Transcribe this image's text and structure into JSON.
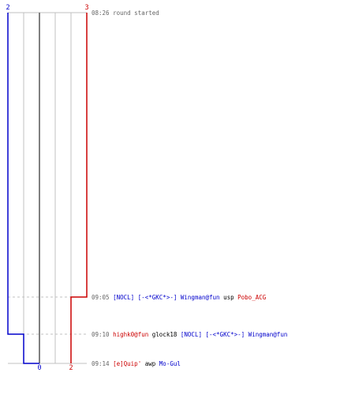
{
  "chart_data": {
    "type": "line",
    "x_edge_labels": {
      "blue_top": "2",
      "red_top": "3",
      "blue_bottom": "0",
      "red_bottom": "2"
    },
    "series": [
      {
        "color": "#0000cc",
        "values": [
          2,
          2,
          1,
          0
        ]
      },
      {
        "color": "#cc0000",
        "values": [
          3,
          2,
          2,
          2
        ]
      }
    ],
    "events": [
      {
        "time": "08:26",
        "parts": [
          {
            "text": "round started",
            "style": "plain"
          }
        ]
      },
      {
        "time": "09:05",
        "parts": [
          {
            "text": "[NOCL] [-<*GKC*>-] Wingman@fun",
            "style": "blue"
          },
          {
            "text": " usp ",
            "style": "plain"
          },
          {
            "text": "Pobo_ACG",
            "style": "red"
          }
        ]
      },
      {
        "time": "09:10",
        "parts": [
          {
            "text": "highk0@fun",
            "style": "red"
          },
          {
            "text": " glock18 ",
            "style": "plain"
          },
          {
            "text": "[NOCL] [-<*GKC*>-] Wingman@fun",
            "style": "blue"
          }
        ]
      },
      {
        "time": "09:14",
        "parts": [
          {
            "text": "[e]Quip'",
            "style": "red"
          },
          {
            "text": " awp ",
            "style": "plain"
          },
          {
            "text": "Mo-Gul",
            "style": "blue"
          }
        ]
      }
    ],
    "grid": true
  },
  "colors": {
    "blue": "#0000cc",
    "red": "#cc0000",
    "grid": "#c0c0c0",
    "time": "#666666",
    "center": "#808080"
  }
}
